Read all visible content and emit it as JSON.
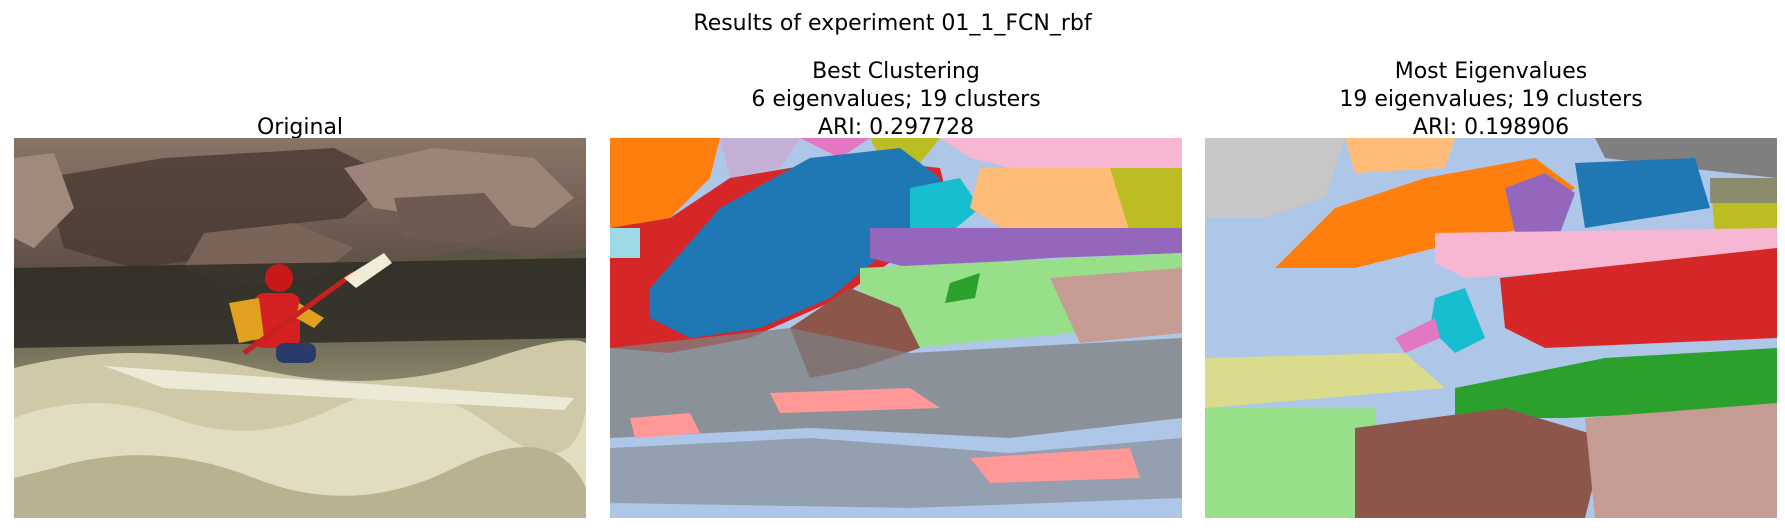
{
  "figure": {
    "suptitle": "Results of experiment 01_1_FCN_rbf"
  },
  "panels": [
    {
      "title_lines": [
        "Original"
      ],
      "image": "photo of kayaker in whitewater rapids in front of brown rocks"
    },
    {
      "title_lines": [
        "Best Clustering",
        "6 eigenvalues; 19 clusters",
        "ARI: 0.297728"
      ],
      "image": "segmentation map"
    },
    {
      "title_lines": [
        "Most Eigenvalues",
        "19 eigenvalues; 19 clusters",
        "ARI: 0.198906"
      ],
      "image": "segmentation map"
    }
  ],
  "palette": {
    "blue": "#1f77b4",
    "orange": "#ff7f0e",
    "green": "#2ca02c",
    "red": "#d62728",
    "purple": "#9467bd",
    "brown": "#8c564b",
    "pink": "#e377c2",
    "gray": "#7f7f7f",
    "olive": "#bcbd22",
    "cyan": "#17becf",
    "light_blue": "#aec7e8",
    "light_orange": "#ffbb78",
    "light_green": "#98df8a",
    "light_red": "#ff9896",
    "light_purple": "#c5b0d5",
    "light_brown": "#c49c94",
    "light_pink": "#f7b6d2",
    "light_gray": "#c7c7c7",
    "light_olive": "#dbdb8d",
    "light_cyan": "#9edae5"
  }
}
